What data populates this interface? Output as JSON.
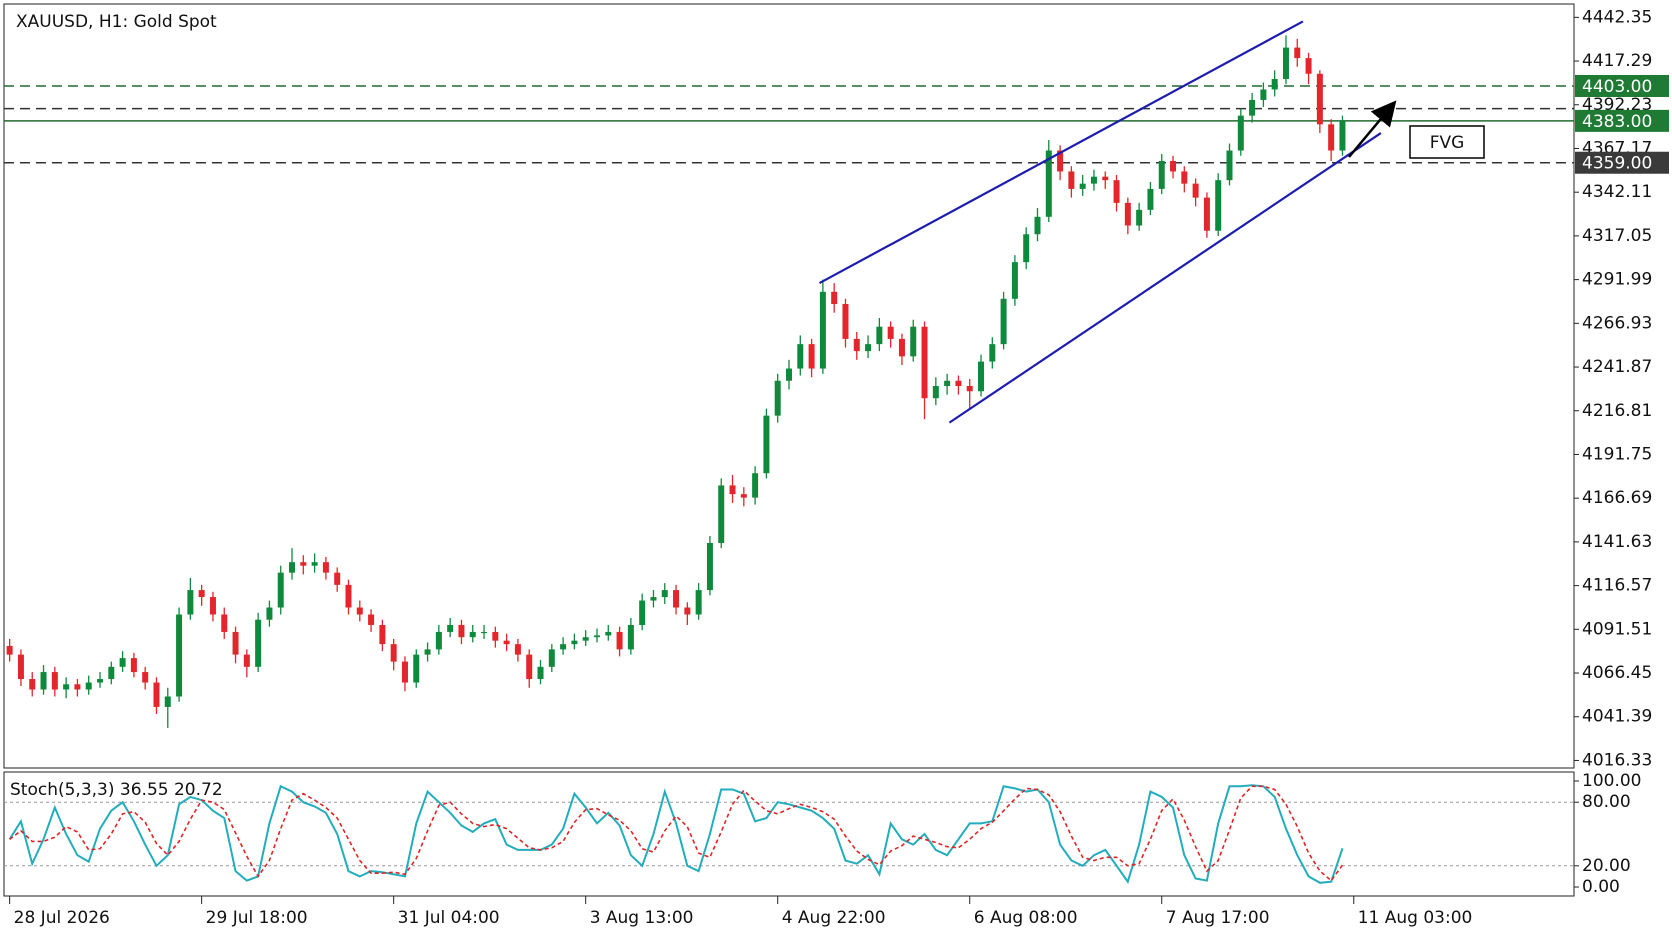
{
  "chart_data": [
    {
      "type": "candlestick",
      "title": "XAUUSD, H1:  Gold Spot",
      "up_color": "#0f8a3c",
      "down_color": "#e3262b",
      "xlim": [
        -0.5,
        138.5
      ],
      "ylim": [
        4012,
        4450
      ],
      "yticks": [
        4442.35,
        4417.29,
        4392.23,
        4367.17,
        4342.11,
        4317.05,
        4291.99,
        4266.93,
        4241.87,
        4216.81,
        4191.75,
        4166.69,
        4141.63,
        4116.57,
        4091.51,
        4066.45,
        4041.39,
        4016.33
      ],
      "levels": [
        {
          "value": 4403,
          "label": "4403.00",
          "style": "dashed",
          "label_bg": "#1f7a33",
          "color": "#1f6b2e"
        },
        {
          "value": 4390,
          "style": "dashed",
          "color": "#333333"
        },
        {
          "value": 4383,
          "label": "4383.00",
          "style": "solid",
          "label_bg": "#1f7a33",
          "color": "#1f6b2e"
        },
        {
          "value": 4359,
          "label": "4359.00",
          "style": "dashed",
          "label_bg": "#3a3a3a",
          "color": "#333333"
        }
      ],
      "trendlines": [
        {
          "color": "#1c1cb0",
          "x": [
            71.7,
            114.5
          ],
          "y": [
            4290,
            4440
          ]
        },
        {
          "color": "#1c1cb0",
          "x": [
            83.2,
            121.4
          ],
          "y": [
            4210,
            4376
          ]
        }
      ],
      "annotations": [
        {
          "text": "FVG"
        }
      ],
      "ohlc": [
        [
          4082,
          4086,
          4073,
          4077
        ],
        [
          4077,
          4080,
          4059,
          4063
        ],
        [
          4063,
          4067,
          4053,
          4057
        ],
        [
          4057,
          4071,
          4054,
          4067
        ],
        [
          4067,
          4070,
          4053,
          4057
        ],
        [
          4057,
          4064,
          4052,
          4060
        ],
        [
          4060,
          4063,
          4053,
          4057
        ],
        [
          4057,
          4065,
          4054,
          4061
        ],
        [
          4061,
          4067,
          4058,
          4063
        ],
        [
          4063,
          4073,
          4060,
          4070
        ],
        [
          4070,
          4079,
          4067,
          4075
        ],
        [
          4075,
          4078,
          4064,
          4067
        ],
        [
          4067,
          4070,
          4057,
          4061
        ],
        [
          4061,
          4064,
          4043,
          4047
        ],
        [
          4047,
          4058,
          4035,
          4053
        ],
        [
          4053,
          4104,
          4050,
          4100
        ],
        [
          4100,
          4121,
          4097,
          4114
        ],
        [
          4114,
          4117,
          4105,
          4110
        ],
        [
          4110,
          4113,
          4096,
          4100
        ],
        [
          4100,
          4104,
          4086,
          4090
        ],
        [
          4090,
          4093,
          4072,
          4077
        ],
        [
          4077,
          4080,
          4064,
          4070
        ],
        [
          4070,
          4101,
          4067,
          4097
        ],
        [
          4097,
          4108,
          4093,
          4104
        ],
        [
          4104,
          4128,
          4100,
          4124
        ],
        [
          4124,
          4138,
          4120,
          4130
        ],
        [
          4130,
          4134,
          4123,
          4128
        ],
        [
          4128,
          4135,
          4124,
          4130
        ],
        [
          4130,
          4133,
          4120,
          4124
        ],
        [
          4124,
          4127,
          4113,
          4117
        ],
        [
          4117,
          4120,
          4100,
          4104
        ],
        [
          4104,
          4108,
          4096,
          4100
        ],
        [
          4100,
          4103,
          4090,
          4094
        ],
        [
          4094,
          4097,
          4079,
          4083
        ],
        [
          4083,
          4086,
          4068,
          4073
        ],
        [
          4073,
          4076,
          4056,
          4061
        ],
        [
          4061,
          4080,
          4058,
          4077
        ],
        [
          4077,
          4084,
          4073,
          4080
        ],
        [
          4080,
          4094,
          4077,
          4090
        ],
        [
          4090,
          4098,
          4087,
          4094
        ],
        [
          4094,
          4097,
          4083,
          4087
        ],
        [
          4087,
          4094,
          4084,
          4090
        ],
        [
          4090,
          4094,
          4086,
          4090
        ],
        [
          4090,
          4093,
          4081,
          4085
        ],
        [
          4085,
          4089,
          4079,
          4083
        ],
        [
          4083,
          4086,
          4073,
          4077
        ],
        [
          4077,
          4080,
          4058,
          4063
        ],
        [
          4063,
          4074,
          4060,
          4070
        ],
        [
          4070,
          4083,
          4067,
          4080
        ],
        [
          4080,
          4087,
          4077,
          4083
        ],
        [
          4083,
          4089,
          4080,
          4085
        ],
        [
          4085,
          4091,
          4082,
          4087
        ],
        [
          4087,
          4092,
          4084,
          4088
        ],
        [
          4088,
          4094,
          4085,
          4090
        ],
        [
          4090,
          4093,
          4076,
          4080
        ],
        [
          4080,
          4098,
          4077,
          4094
        ],
        [
          4094,
          4112,
          4091,
          4108
        ],
        [
          4108,
          4114,
          4104,
          4110
        ],
        [
          4110,
          4118,
          4106,
          4114
        ],
        [
          4114,
          4117,
          4100,
          4104
        ],
        [
          4104,
          4107,
          4094,
          4100
        ],
        [
          4100,
          4118,
          4097,
          4114
        ],
        [
          4114,
          4145,
          4111,
          4141
        ],
        [
          4141,
          4178,
          4138,
          4174
        ],
        [
          4174,
          4180,
          4164,
          4169
        ],
        [
          4169,
          4173,
          4162,
          4167
        ],
        [
          4167,
          4185,
          4163,
          4181
        ],
        [
          4181,
          4218,
          4178,
          4214
        ],
        [
          4214,
          4238,
          4210,
          4234
        ],
        [
          4234,
          4246,
          4229,
          4241
        ],
        [
          4241,
          4260,
          4237,
          4255
        ],
        [
          4255,
          4258,
          4236,
          4241
        ],
        [
          4241,
          4292,
          4238,
          4285
        ],
        [
          4285,
          4290,
          4273,
          4278
        ],
        [
          4278,
          4281,
          4253,
          4258
        ],
        [
          4258,
          4262,
          4246,
          4251
        ],
        [
          4251,
          4260,
          4247,
          4255
        ],
        [
          4255,
          4270,
          4251,
          4265
        ],
        [
          4265,
          4268,
          4253,
          4258
        ],
        [
          4258,
          4261,
          4243,
          4248
        ],
        [
          4248,
          4269,
          4245,
          4265
        ],
        [
          4265,
          4268,
          4212,
          4224
        ],
        [
          4224,
          4236,
          4220,
          4231
        ],
        [
          4231,
          4238,
          4226,
          4234
        ],
        [
          4234,
          4237,
          4226,
          4231
        ],
        [
          4231,
          4235,
          4218,
          4228
        ],
        [
          4228,
          4249,
          4225,
          4245
        ],
        [
          4245,
          4259,
          4241,
          4255
        ],
        [
          4255,
          4285,
          4252,
          4281
        ],
        [
          4281,
          4306,
          4277,
          4302
        ],
        [
          4302,
          4322,
          4298,
          4318
        ],
        [
          4318,
          4333,
          4314,
          4328
        ],
        [
          4328,
          4372,
          4325,
          4366
        ],
        [
          4366,
          4369,
          4349,
          4354
        ],
        [
          4354,
          4357,
          4339,
          4344
        ],
        [
          4344,
          4352,
          4340,
          4347
        ],
        [
          4347,
          4355,
          4343,
          4351
        ],
        [
          4351,
          4354,
          4344,
          4349
        ],
        [
          4349,
          4352,
          4331,
          4336
        ],
        [
          4336,
          4339,
          4318,
          4323
        ],
        [
          4323,
          4336,
          4320,
          4332
        ],
        [
          4332,
          4348,
          4329,
          4344
        ],
        [
          4344,
          4364,
          4341,
          4360
        ],
        [
          4360,
          4363,
          4350,
          4354
        ],
        [
          4354,
          4357,
          4342,
          4347
        ],
        [
          4347,
          4350,
          4334,
          4339
        ],
        [
          4339,
          4342,
          4316,
          4320
        ],
        [
          4320,
          4353,
          4317,
          4349
        ],
        [
          4349,
          4370,
          4346,
          4366
        ],
        [
          4366,
          4390,
          4363,
          4386
        ],
        [
          4386,
          4399,
          4382,
          4395
        ],
        [
          4395,
          4405,
          4391,
          4401
        ],
        [
          4401,
          4412,
          4397,
          4407
        ],
        [
          4407,
          4432,
          4404,
          4425
        ],
        [
          4425,
          4430,
          4414,
          4419
        ],
        [
          4419,
          4422,
          4404,
          4410
        ],
        [
          4410,
          4412,
          4376,
          4381
        ],
        [
          4381,
          4384,
          4360,
          4366
        ],
        [
          4366,
          4386,
          4363,
          4383
        ]
      ]
    },
    {
      "type": "line",
      "title": "Stoch(5,3,3) 36.55 20.72",
      "xlim": [
        -0.5,
        138.5
      ],
      "ylim": [
        -8.5,
        108.5
      ],
      "yticks": [
        {
          "value": 100,
          "label": "100.00"
        },
        {
          "value": 80,
          "label": "80.00"
        },
        {
          "value": 20,
          "label": "20.00"
        },
        {
          "value": 0,
          "label": "0.00"
        }
      ],
      "dashed_levels": [
        80,
        20
      ],
      "xticks": [
        {
          "value": 0,
          "label": "28 Jul 2026"
        },
        {
          "value": 17,
          "label": "29 Jul 18:00"
        },
        {
          "value": 34,
          "label": "31 Jul 04:00"
        },
        {
          "value": 51,
          "label": "3 Aug 13:00"
        },
        {
          "value": 68,
          "label": "4 Aug 22:00"
        },
        {
          "value": 85,
          "label": "6 Aug 08:00"
        },
        {
          "value": 102,
          "label": "7 Aug 17:00"
        },
        {
          "value": 119,
          "label": "11 Aug 03:00"
        }
      ],
      "series": [
        {
          "color": "#22adbd",
          "style": "solid",
          "values": [
            45,
            62,
            22,
            45,
            75,
            50,
            30,
            24,
            55,
            72,
            80,
            62,
            40,
            20,
            30,
            78,
            85,
            82,
            72,
            65,
            15,
            6,
            10,
            60,
            95,
            90,
            80,
            76,
            70,
            50,
            15,
            10,
            15,
            14,
            12,
            10,
            60,
            90,
            80,
            70,
            58,
            52,
            60,
            64,
            40,
            35,
            35,
            35,
            40,
            55,
            88,
            75,
            60,
            70,
            58,
            30,
            20,
            50,
            90,
            60,
            20,
            15,
            50,
            92,
            92,
            88,
            62,
            65,
            80,
            78,
            75,
            72,
            65,
            55,
            25,
            22,
            30,
            12,
            60,
            45,
            40,
            50,
            35,
            30,
            45,
            60,
            60,
            62,
            95,
            93,
            90,
            92,
            80,
            40,
            25,
            20,
            30,
            35,
            20,
            5,
            40,
            90,
            85,
            75,
            30,
            8,
            6,
            60,
            95,
            95,
            96,
            95,
            85,
            55,
            30,
            10,
            4,
            5,
            36.55
          ]
        },
        {
          "color": "#e02424",
          "style": "dashed",
          "values": [
            45,
            53,
            43,
            43,
            47,
            57,
            52,
            35,
            36,
            50,
            69,
            71,
            61,
            41,
            30,
            43,
            64,
            82,
            80,
            73,
            51,
            29,
            10,
            25,
            55,
            82,
            88,
            82,
            75,
            65,
            45,
            25,
            13,
            13,
            14,
            12,
            27,
            53,
            77,
            80,
            69,
            60,
            57,
            59,
            55,
            46,
            37,
            35,
            37,
            43,
            61,
            73,
            74,
            68,
            63,
            53,
            36,
            33,
            53,
            67,
            57,
            32,
            28,
            52,
            78,
            91,
            81,
            72,
            69,
            74,
            78,
            75,
            71,
            64,
            48,
            34,
            26,
            21,
            34,
            39,
            48,
            45,
            42,
            38,
            37,
            45,
            55,
            61,
            72,
            83,
            93,
            92,
            87,
            71,
            48,
            28,
            25,
            28,
            28,
            20,
            22,
            45,
            72,
            83,
            63,
            38,
            15,
            25,
            54,
            84,
            95,
            95,
            92,
            78,
            57,
            32,
            15,
            6,
            20.72
          ]
        }
      ]
    }
  ]
}
